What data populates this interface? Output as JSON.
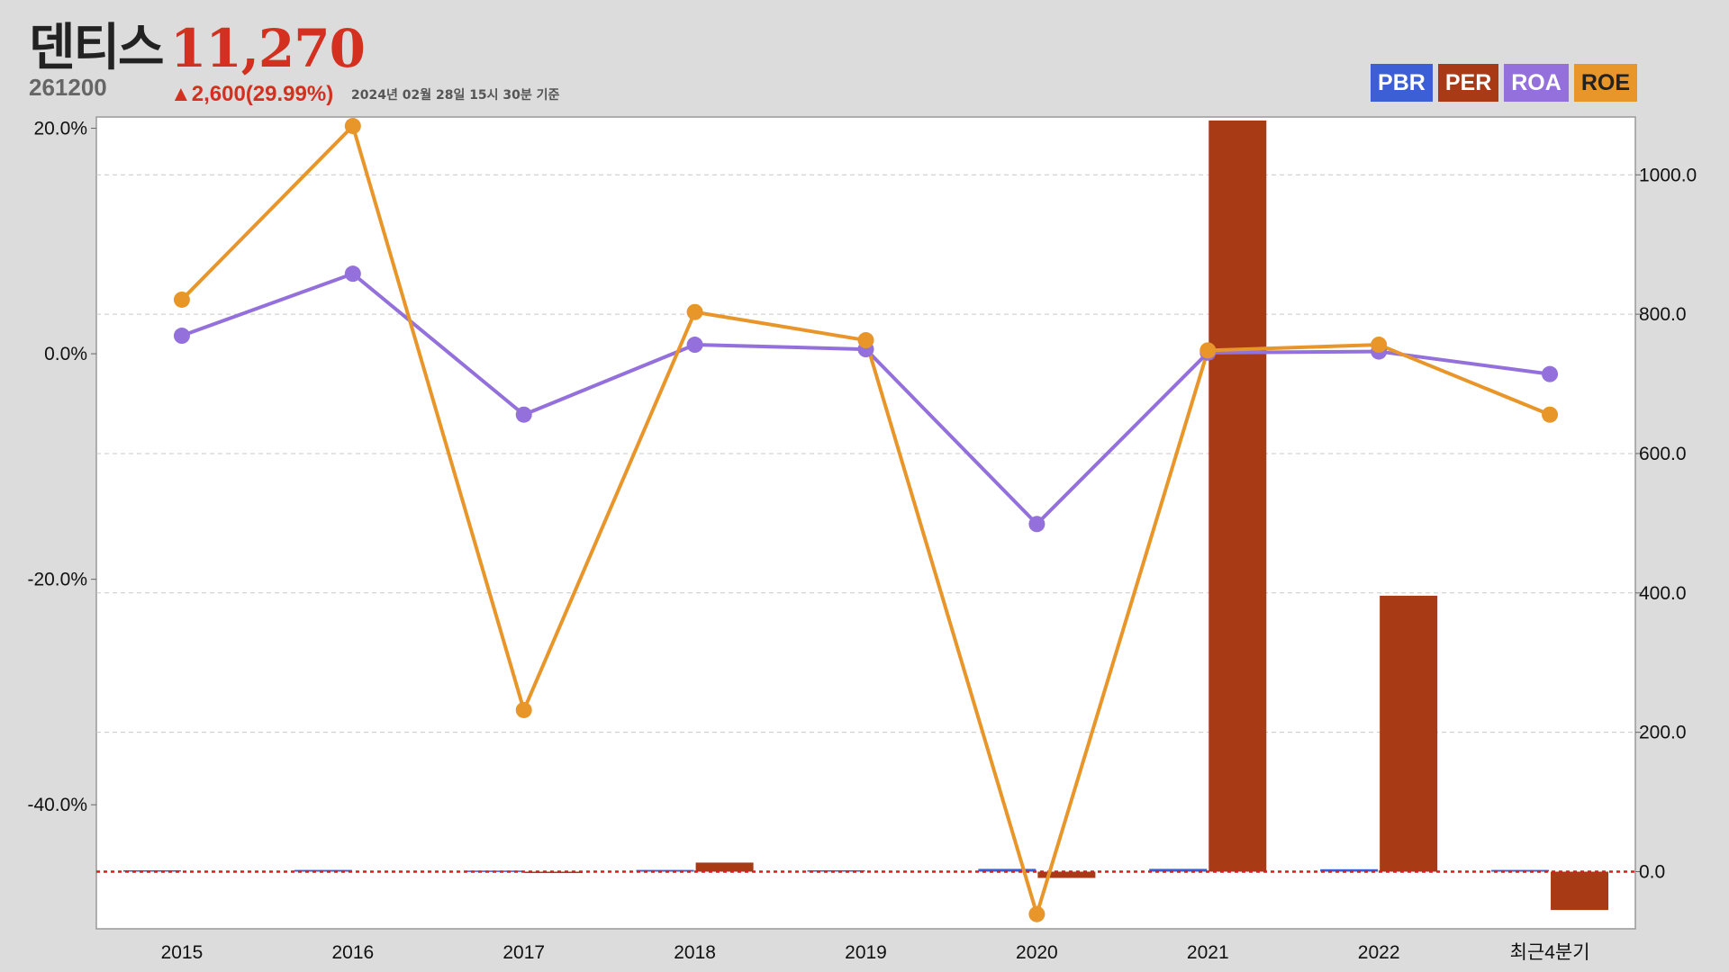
{
  "header": {
    "name": "덴티스",
    "price": "11,270",
    "code": "261200",
    "change": "▲2,600(29.99%)",
    "date": "2024년 02월 28일 15시 30분 기준"
  },
  "colors": {
    "PBR": "#3d5fd6",
    "PER": "#a83a15",
    "ROA": "#9370db",
    "ROE": "#e8962a",
    "zero_line": "#cc2222"
  },
  "chart_data": {
    "type": "bar",
    "categories": [
      "2015",
      "2016",
      "2017",
      "2018",
      "2019",
      "2020",
      "2021",
      "2022",
      "최근4분기"
    ],
    "series": [
      {
        "name": "PBR",
        "type": "bar",
        "axis": "right",
        "values": [
          2.0,
          2.5,
          1.5,
          2.5,
          2.0,
          4.0,
          4.0,
          3.5,
          2.5
        ]
      },
      {
        "name": "PER",
        "type": "bar",
        "axis": "right",
        "values": [
          null,
          null,
          -2.0,
          13.0,
          null,
          -9.0,
          1078.0,
          396.0,
          -55.0
        ]
      },
      {
        "name": "ROA",
        "type": "line",
        "axis": "left",
        "values": [
          1.6,
          7.1,
          -5.4,
          0.8,
          0.4,
          -15.1,
          0.1,
          0.2,
          -1.8
        ]
      },
      {
        "name": "ROE",
        "type": "line",
        "axis": "left",
        "values": [
          4.8,
          20.2,
          -31.6,
          3.7,
          1.2,
          -49.7,
          0.3,
          0.8,
          -5.4
        ]
      }
    ],
    "left_axis": {
      "ylim": [
        -51,
        21
      ],
      "ticks": [
        20,
        0,
        -20,
        -40
      ],
      "tick_labels": [
        "20.0%",
        "0.0%",
        "-20.0%",
        "-40.0%"
      ]
    },
    "right_axis": {
      "ylim": [
        -82,
        1083
      ],
      "ticks": [
        1000,
        800,
        600,
        400,
        200,
        0
      ],
      "tick_labels": [
        "1000.0",
        "800.0",
        "600.0",
        "400.0",
        "200.0",
        "0.0"
      ]
    },
    "legend": [
      "PBR",
      "PER",
      "ROA",
      "ROE"
    ],
    "grid": true
  }
}
